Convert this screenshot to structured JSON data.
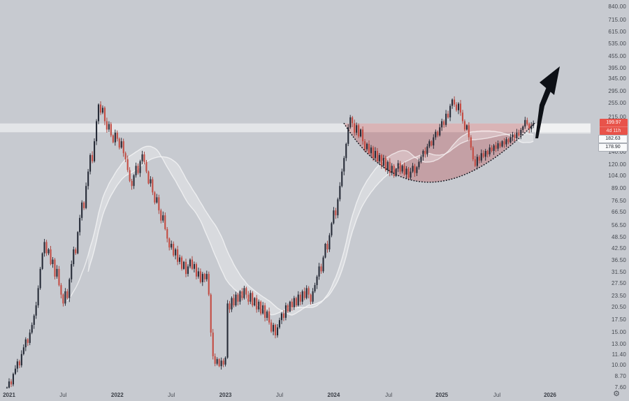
{
  "colors": {
    "background": "#c7cad0",
    "candle_up": "#262b37",
    "candle_up_wick": "#1d222d",
    "candle_down": "#c44c43",
    "candle_down_wick": "#a93d36",
    "ma_ribbon": "rgba(255,255,255,0.62)",
    "ma_fill": "rgba(255,255,255,0.30)",
    "resistance_zone": "rgba(255,255,255,0.50)",
    "cup_fill": "rgba(190,55,55,0.28)",
    "cup_arc": "#181b23",
    "arrow": "#0d1016",
    "badge_red": "#e8534a",
    "axis_text": "#44484f"
  },
  "price_axis": {
    "labels": [
      "840.00",
      "715.00",
      "615.00",
      "535.00",
      "455.00",
      "395.00",
      "345.00",
      "295.00",
      "255.00",
      "215.00",
      "140.00",
      "120.00",
      "104.00",
      "89.00",
      "76.50",
      "66.50",
      "56.50",
      "48.50",
      "42.50",
      "36.50",
      "31.50",
      "27.50",
      "23.50",
      "20.50",
      "17.50",
      "15.00",
      "13.00",
      "11.40",
      "10.00",
      "8.70",
      "7.60"
    ],
    "values": [
      840,
      715,
      615,
      535,
      455,
      395,
      345,
      295,
      255,
      215,
      140,
      120,
      104,
      89,
      76.5,
      66.5,
      56.5,
      48.5,
      42.5,
      36.5,
      31.5,
      27.5,
      23.5,
      20.5,
      17.5,
      15,
      13,
      11.4,
      10,
      8.7,
      7.6
    ]
  },
  "time_axis": {
    "ticks": [
      {
        "label": "2021",
        "week": 1,
        "major": true
      },
      {
        "label": "Jul",
        "week": 27,
        "major": false
      },
      {
        "label": "2022",
        "week": 53,
        "major": true
      },
      {
        "label": "Jul",
        "week": 79,
        "major": false
      },
      {
        "label": "2023",
        "week": 105,
        "major": true
      },
      {
        "label": "Jul",
        "week": 131,
        "major": false
      },
      {
        "label": "2024",
        "week": 157,
        "major": true
      },
      {
        "label": "Jul",
        "week": 183.5,
        "major": false
      },
      {
        "label": "2025",
        "week": 209,
        "major": true
      },
      {
        "label": "Jul",
        "week": 235.5,
        "major": false
      },
      {
        "label": "2026",
        "week": 261,
        "major": true
      }
    ]
  },
  "badges": {
    "current_price": "199.97",
    "countdown": "4d 11h",
    "level_1": "182.63",
    "level_2": "178.90"
  },
  "settings_icon": "gear",
  "chart_data": {
    "type": "candlestick",
    "y_scale": "log",
    "x_range_labels": [
      "2021",
      "2026"
    ],
    "y_ticks": [
      840,
      715,
      615,
      535,
      455,
      395,
      345,
      295,
      255,
      215,
      140,
      120,
      104,
      89,
      76.5,
      66.5,
      56.5,
      48.5,
      42.5,
      36.5,
      31.5,
      27.5,
      23.5,
      20.5,
      17.5,
      15,
      13,
      11.4,
      10,
      8.7,
      7.6
    ],
    "last_price": 199.97,
    "first_open": 7.2,
    "closes": [
      7.6,
      8.2,
      7.9,
      9.0,
      9.6,
      10.5,
      10.0,
      11.5,
      12.5,
      13.8,
      13.2,
      15.0,
      16.5,
      18.5,
      21.0,
      26.0,
      33.0,
      40.0,
      46,
      40,
      42,
      35,
      37,
      30,
      33,
      27,
      24,
      21.5,
      25,
      23,
      29,
      35,
      42,
      40,
      52,
      62,
      75,
      70,
      92,
      110,
      135,
      125,
      160,
      205,
      252,
      228,
      242,
      205,
      185,
      198,
      172,
      158,
      178,
      165,
      148,
      160,
      138,
      128,
      112,
      98,
      92,
      105,
      118,
      108,
      125,
      136,
      124,
      110,
      95,
      100,
      85,
      75,
      80,
      68,
      60,
      64,
      54,
      48,
      43,
      45,
      39,
      42,
      36,
      38,
      33,
      36,
      31,
      34,
      37,
      33,
      35,
      30,
      32,
      28,
      31,
      29,
      31,
      24,
      15,
      11.2,
      10.2,
      10.8,
      9.9,
      10.6,
      10.1,
      11.0,
      21.5,
      20,
      23,
      21,
      24,
      22,
      25,
      23,
      26,
      24,
      22,
      24.5,
      21,
      23,
      20,
      22,
      19,
      21,
      18,
      19.5,
      17,
      15.2,
      16.5,
      14.5,
      16,
      17.5,
      19,
      18,
      21,
      19.5,
      22,
      20.5,
      23,
      21,
      24,
      22,
      25,
      23,
      26,
      24,
      22,
      25,
      27,
      30,
      34,
      32,
      38,
      45,
      42,
      50,
      58,
      68,
      64,
      78,
      92,
      110,
      130,
      155,
      190,
      215,
      200,
      178,
      195,
      170,
      185,
      160,
      145,
      155,
      138,
      148,
      130,
      142,
      125,
      135,
      118,
      130,
      112,
      124,
      108,
      118,
      104,
      114,
      122,
      110,
      118,
      106,
      114,
      102,
      110,
      118,
      108,
      116,
      124,
      132,
      142,
      136,
      150,
      160,
      152,
      168,
      180,
      172,
      190,
      205,
      196,
      225,
      215,
      248,
      268,
      252,
      235,
      255,
      228,
      205,
      185,
      195,
      168,
      148,
      128,
      118,
      132,
      126,
      138,
      132,
      142,
      136,
      148,
      142,
      152,
      146,
      156,
      150,
      160,
      154,
      164,
      158,
      168,
      174,
      166,
      178,
      172,
      184,
      192,
      208,
      198,
      186,
      194,
      199.97
    ],
    "overlays": {
      "ma_ribbon_windows": [
        30,
        40
      ],
      "resistance_zone": {
        "top": 199.4,
        "bottom": 178.9
      },
      "zone_level_labels": [
        182.63,
        178.9
      ],
      "cup_arc": {
        "style": "dotted",
        "start_week": 162,
        "end_week": 253.5,
        "rim_price": 199.4,
        "control_week": 198,
        "control_price": 46.6
      },
      "arrow_annotation": {
        "shape": "up-right black arrow",
        "shaft": [
          [
            766,
            198
          ],
          [
            770,
            198
          ],
          [
            779,
            152
          ],
          [
            790,
            126
          ],
          [
            783,
            122
          ],
          [
            772,
            150
          ]
        ],
        "head": [
          [
            801,
            95
          ],
          [
            772,
            118
          ],
          [
            793,
            136
          ]
        ]
      }
    }
  }
}
